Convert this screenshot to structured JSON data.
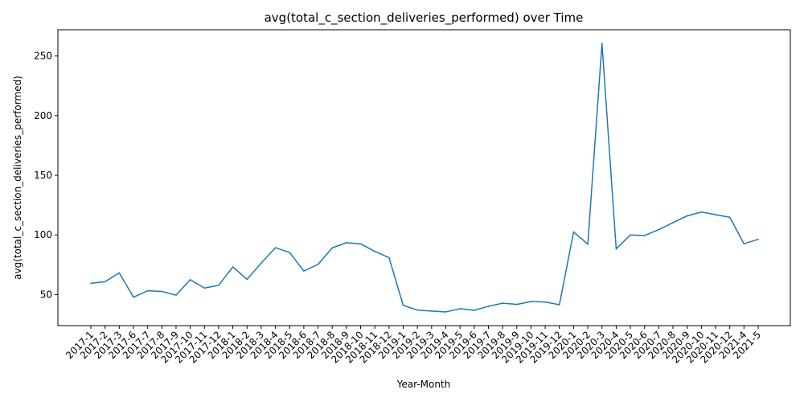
{
  "chart_data": {
    "type": "line",
    "title": "avg(total_c_section_deliveries_performed) over Time",
    "xlabel": "Year-Month",
    "ylabel": "avg(total_c_section_deliveries_performed)",
    "ylim": [
      24,
      272
    ],
    "yticks": [
      50,
      100,
      150,
      200,
      250
    ],
    "grid": false,
    "categories": [
      "2017-1",
      "2017-2",
      "2017-3",
      "2017-6",
      "2017-7",
      "2017-8",
      "2017-9",
      "2017-10",
      "2017-11",
      "2017-12",
      "2018-1",
      "2018-2",
      "2018-3",
      "2018-4",
      "2018-5",
      "2018-6",
      "2018-7",
      "2018-8",
      "2018-9",
      "2018-10",
      "2018-11",
      "2018-12",
      "2019-1",
      "2019-2",
      "2019-3",
      "2019-4",
      "2019-5",
      "2019-6",
      "2019-7",
      "2019-8",
      "2019-9",
      "2019-10",
      "2019-11",
      "2019-12",
      "2020-1",
      "2020-2",
      "2020-3",
      "2020-4",
      "2020-5",
      "2020-6",
      "2020-7",
      "2020-8",
      "2020-9",
      "2020-10",
      "2020-11",
      "2020-12",
      "2021-4",
      "2021-5"
    ],
    "series": [
      {
        "color": "#1f77b4",
        "values": [
          59.5,
          60.8,
          68.2,
          47.8,
          53.2,
          52.6,
          49.6,
          62.5,
          55.5,
          57.8,
          73.2,
          62.8,
          76.5,
          89.3,
          85.3,
          69.8,
          75.3,
          89.2,
          93.5,
          92.5,
          86.2,
          81.0,
          41.0,
          37.0,
          36.2,
          35.5,
          38.2,
          36.8,
          40.2,
          42.8,
          41.8,
          44.2,
          43.8,
          41.5,
          102.5,
          92.3,
          260.5,
          88.3,
          100.0,
          99.5,
          104.5,
          110.3,
          116.0,
          119.2,
          117.0,
          114.8,
          92.6,
          96.3
        ]
      }
    ]
  }
}
